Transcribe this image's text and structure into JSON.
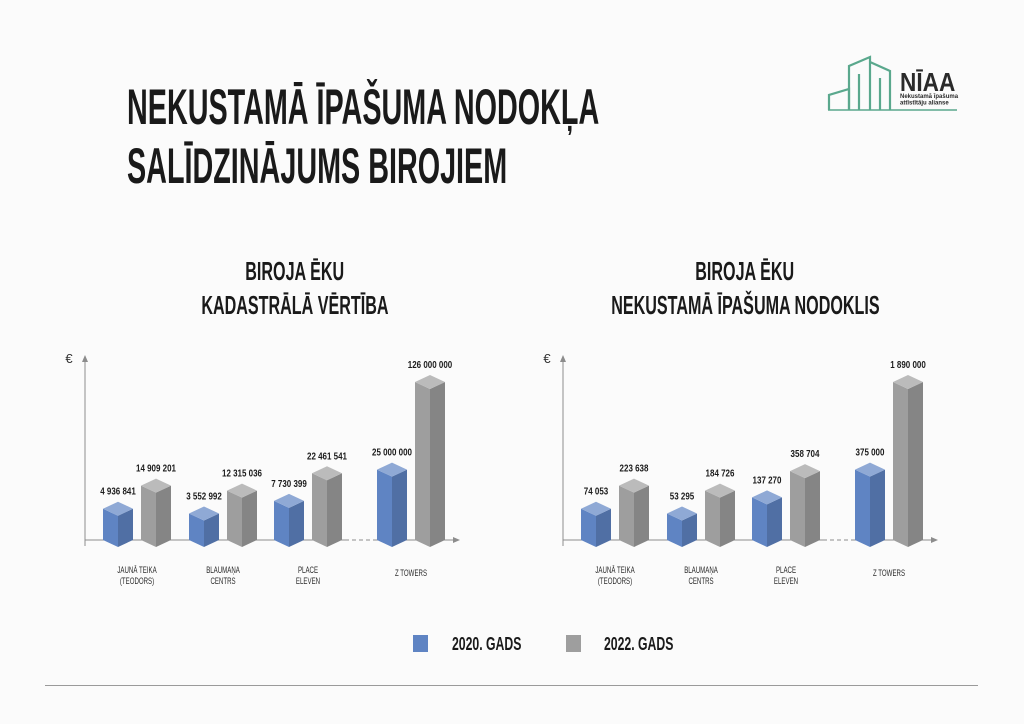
{
  "title": {
    "line1": "NEKUSTAMĀ ĪPAŠUMA NODOKĻA",
    "line2": "SALĪDZINĀJUMS BIROJIEM"
  },
  "logo": {
    "name": "NĪAA",
    "tagline": [
      "Nekustamā īpašuma",
      "attīstītāju alianse"
    ],
    "icon": "buildings-icon",
    "color": "#5aa88d"
  },
  "chart_data": [
    {
      "type": "bar",
      "title": [
        "BIROJA ĒKU",
        "KADASTRĀLĀ VĒRTĪBA"
      ],
      "xlabel": "",
      "ylabel": "€",
      "categories": [
        [
          "JAUNĀ TEIKA",
          "(TEODORS)"
        ],
        [
          "BLAUMAŅA",
          "CENTRS"
        ],
        [
          "PLACE",
          "ELEVEN"
        ],
        [
          "Z TOWERS"
        ]
      ],
      "series": [
        {
          "name": "2020. GADS",
          "color": "#5f84c3",
          "values": [
            4936841,
            3552992,
            7730399,
            25000000
          ]
        },
        {
          "name": "2022. GADS",
          "color": "#9e9e9e",
          "values": [
            14909201,
            12315036,
            22461541,
            126000000
          ]
        }
      ],
      "grid": false,
      "legend": "bottom"
    },
    {
      "type": "bar",
      "title": [
        "BIROJA ĒKU",
        "NEKUSTAMĀ ĪPAŠUMA NODOKLIS"
      ],
      "xlabel": "",
      "ylabel": "€",
      "categories": [
        [
          "JAUNĀ TEIKA",
          "(TEODORS)"
        ],
        [
          "BLAUMAŅA",
          "CENTRS"
        ],
        [
          "PLACE",
          "ELEVEN"
        ],
        [
          "Z TOWERS"
        ]
      ],
      "series": [
        {
          "name": "2020. GADS",
          "color": "#5f84c3",
          "values": [
            74053,
            53295,
            137270,
            375000
          ]
        },
        {
          "name": "2022. GADS",
          "color": "#9e9e9e",
          "values": [
            223638,
            184726,
            358704,
            1890000
          ]
        }
      ],
      "grid": false,
      "legend": "bottom"
    }
  ]
}
